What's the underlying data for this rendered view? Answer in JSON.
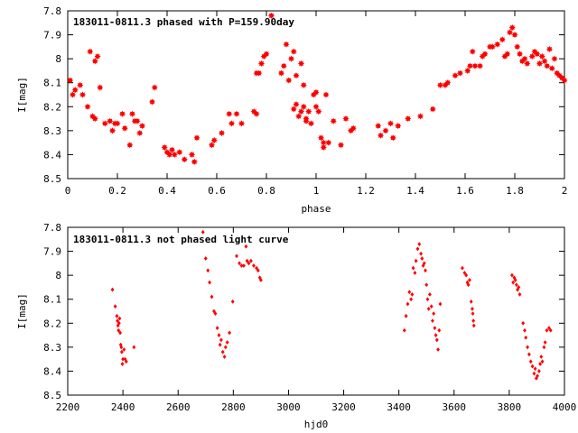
{
  "chart_data": [
    {
      "type": "scatter",
      "title": "183011-0811.3 phased with P=159.90day",
      "xlabel": "phase",
      "ylabel": "I[mag]",
      "xlim": [
        0,
        2
      ],
      "ylim": [
        8.5,
        7.8
      ],
      "y_inverted": true,
      "xticks": [
        "0",
        "0.2",
        "0.4",
        "0.6",
        "0.8",
        "1",
        "1.2",
        "1.4",
        "1.6",
        "1.8",
        "2"
      ],
      "yticks": [
        "7.8",
        "7.9",
        "8",
        "8.1",
        "8.2",
        "8.3",
        "8.4",
        "8.5"
      ],
      "marker": "filled-star",
      "color": "#ff0000",
      "points": [
        [
          0.01,
          8.09
        ],
        [
          0.02,
          8.15
        ],
        [
          0.03,
          8.13
        ],
        [
          0.05,
          8.11
        ],
        [
          0.06,
          8.15
        ],
        [
          0.08,
          8.2
        ],
        [
          0.09,
          7.97
        ],
        [
          0.1,
          8.24
        ],
        [
          0.11,
          8.25
        ],
        [
          0.11,
          8.01
        ],
        [
          0.12,
          7.99
        ],
        [
          0.13,
          8.12
        ],
        [
          0.15,
          8.27
        ],
        [
          0.17,
          8.26
        ],
        [
          0.18,
          8.3
        ],
        [
          0.19,
          8.27
        ],
        [
          0.2,
          8.27
        ],
        [
          0.22,
          8.23
        ],
        [
          0.23,
          8.29
        ],
        [
          0.25,
          8.36
        ],
        [
          0.26,
          8.23
        ],
        [
          0.27,
          8.26
        ],
        [
          0.28,
          8.26
        ],
        [
          0.29,
          8.31
        ],
        [
          0.3,
          8.28
        ],
        [
          0.34,
          8.18
        ],
        [
          0.35,
          8.12
        ],
        [
          0.39,
          8.37
        ],
        [
          0.4,
          8.39
        ],
        [
          0.41,
          8.4
        ],
        [
          0.42,
          8.38
        ],
        [
          0.43,
          8.4
        ],
        [
          0.45,
          8.39
        ],
        [
          0.47,
          8.42
        ],
        [
          0.5,
          8.4
        ],
        [
          0.51,
          8.43
        ],
        [
          0.52,
          8.33
        ],
        [
          0.58,
          8.36
        ],
        [
          0.59,
          8.34
        ],
        [
          0.62,
          8.31
        ],
        [
          0.65,
          8.23
        ],
        [
          0.66,
          8.27
        ],
        [
          0.68,
          8.23
        ],
        [
          0.7,
          8.27
        ],
        [
          0.75,
          8.22
        ],
        [
          0.76,
          8.23
        ],
        [
          0.76,
          8.06
        ],
        [
          0.77,
          8.06
        ],
        [
          0.78,
          8.02
        ],
        [
          0.79,
          7.99
        ],
        [
          0.8,
          7.98
        ],
        [
          0.82,
          7.82
        ],
        [
          0.86,
          8.06
        ],
        [
          0.87,
          8.03
        ],
        [
          0.88,
          7.94
        ],
        [
          0.89,
          8.09
        ],
        [
          0.9,
          8.0
        ],
        [
          0.91,
          7.97
        ],
        [
          0.91,
          8.21
        ],
        [
          0.92,
          8.19
        ],
        [
          0.92,
          8.07
        ],
        [
          0.93,
          8.24
        ],
        [
          0.94,
          8.22
        ],
        [
          0.94,
          8.02
        ],
        [
          0.95,
          8.11
        ],
        [
          0.95,
          8.2
        ],
        [
          0.96,
          8.25
        ],
        [
          0.96,
          8.26
        ],
        [
          0.97,
          8.22
        ],
        [
          0.98,
          8.27
        ],
        [
          0.99,
          8.15
        ],
        [
          1.0,
          8.14
        ],
        [
          1.0,
          8.2
        ],
        [
          1.01,
          8.22
        ],
        [
          1.02,
          8.33
        ],
        [
          1.03,
          8.35
        ],
        [
          1.03,
          8.37
        ],
        [
          1.04,
          8.15
        ],
        [
          1.05,
          8.35
        ],
        [
          1.07,
          8.26
        ],
        [
          1.1,
          8.36
        ],
        [
          1.12,
          8.25
        ],
        [
          1.14,
          8.3
        ],
        [
          1.15,
          8.29
        ],
        [
          1.25,
          8.28
        ],
        [
          1.26,
          8.32
        ],
        [
          1.28,
          8.3
        ],
        [
          1.3,
          8.27
        ],
        [
          1.31,
          8.33
        ],
        [
          1.33,
          8.28
        ],
        [
          1.37,
          8.25
        ],
        [
          1.42,
          8.24
        ],
        [
          1.47,
          8.21
        ],
        [
          1.5,
          8.11
        ],
        [
          1.52,
          8.11
        ],
        [
          1.53,
          8.1
        ],
        [
          1.56,
          8.07
        ],
        [
          1.58,
          8.06
        ],
        [
          1.61,
          8.05
        ],
        [
          1.62,
          8.03
        ],
        [
          1.63,
          7.97
        ],
        [
          1.64,
          8.03
        ],
        [
          1.66,
          8.03
        ],
        [
          1.67,
          7.99
        ],
        [
          1.68,
          7.98
        ],
        [
          1.7,
          7.95
        ],
        [
          1.71,
          7.95
        ],
        [
          1.73,
          7.94
        ],
        [
          1.75,
          7.92
        ],
        [
          1.76,
          7.99
        ],
        [
          1.77,
          7.98
        ],
        [
          1.78,
          7.89
        ],
        [
          1.79,
          7.87
        ],
        [
          1.8,
          7.9
        ],
        [
          1.81,
          7.95
        ],
        [
          1.82,
          7.98
        ],
        [
          1.83,
          8.01
        ],
        [
          1.84,
          8.0
        ],
        [
          1.85,
          8.02
        ],
        [
          1.87,
          7.99
        ],
        [
          1.88,
          7.97
        ],
        [
          1.89,
          7.98
        ],
        [
          1.9,
          8.02
        ],
        [
          1.91,
          7.99
        ],
        [
          1.92,
          8.01
        ],
        [
          1.93,
          8.03
        ],
        [
          1.94,
          7.96
        ],
        [
          1.95,
          8.04
        ],
        [
          1.96,
          8.0
        ],
        [
          1.97,
          8.06
        ],
        [
          1.98,
          8.07
        ],
        [
          1.99,
          8.08
        ],
        [
          2.0,
          8.09
        ]
      ]
    },
    {
      "type": "scatter",
      "title": "183011-0811.3 not phased light curve",
      "xlabel": "hjd0",
      "ylabel": "I[mag]",
      "xlim": [
        2200,
        4000
      ],
      "ylim": [
        8.5,
        7.8
      ],
      "y_inverted": true,
      "xticks": [
        "2200",
        "2400",
        "2600",
        "2800",
        "3000",
        "3200",
        "3400",
        "3600",
        "3800",
        "4000"
      ],
      "yticks": [
        "7.8",
        "7.9",
        "8",
        "8.1",
        "8.2",
        "8.3",
        "8.4",
        "8.5"
      ],
      "marker": "small-diamond",
      "color": "#ff0000",
      "points": [
        [
          2362,
          8.06
        ],
        [
          2372,
          8.13
        ],
        [
          2378,
          8.17
        ],
        [
          2380,
          8.19
        ],
        [
          2382,
          8.21
        ],
        [
          2384,
          8.23
        ],
        [
          2386,
          8.2
        ],
        [
          2388,
          8.18
        ],
        [
          2390,
          8.24
        ],
        [
          2392,
          8.29
        ],
        [
          2394,
          8.3
        ],
        [
          2396,
          8.32
        ],
        [
          2398,
          8.37
        ],
        [
          2400,
          8.35
        ],
        [
          2404,
          8.31
        ],
        [
          2408,
          8.35
        ],
        [
          2412,
          8.36
        ],
        [
          2440,
          8.3
        ],
        [
          2690,
          7.82
        ],
        [
          2700,
          7.93
        ],
        [
          2708,
          7.98
        ],
        [
          2714,
          8.03
        ],
        [
          2722,
          8.09
        ],
        [
          2730,
          8.15
        ],
        [
          2735,
          8.16
        ],
        [
          2742,
          8.22
        ],
        [
          2748,
          8.25
        ],
        [
          2752,
          8.29
        ],
        [
          2756,
          8.27
        ],
        [
          2762,
          8.32
        ],
        [
          2768,
          8.34
        ],
        [
          2772,
          8.3
        ],
        [
          2778,
          8.28
        ],
        [
          2786,
          8.24
        ],
        [
          2798,
          8.11
        ],
        [
          2812,
          7.92
        ],
        [
          2822,
          7.95
        ],
        [
          2830,
          7.96
        ],
        [
          2838,
          7.96
        ],
        [
          2846,
          7.88
        ],
        [
          2850,
          7.94
        ],
        [
          2856,
          7.95
        ],
        [
          2864,
          7.94
        ],
        [
          2874,
          7.96
        ],
        [
          2884,
          7.97
        ],
        [
          2890,
          7.98
        ],
        [
          2896,
          8.01
        ],
        [
          2900,
          8.02
        ],
        [
          3420,
          8.23
        ],
        [
          3426,
          8.17
        ],
        [
          3432,
          8.12
        ],
        [
          3438,
          8.07
        ],
        [
          3444,
          8.1
        ],
        [
          3448,
          8.08
        ],
        [
          3452,
          7.97
        ],
        [
          3458,
          7.99
        ],
        [
          3462,
          7.94
        ],
        [
          3468,
          7.89
        ],
        [
          3474,
          7.87
        ],
        [
          3480,
          7.91
        ],
        [
          3484,
          7.93
        ],
        [
          3488,
          7.96
        ],
        [
          3492,
          7.95
        ],
        [
          3496,
          7.98
        ],
        [
          3500,
          8.04
        ],
        [
          3504,
          8.1
        ],
        [
          3508,
          8.14
        ],
        [
          3512,
          8.08
        ],
        [
          3518,
          8.13
        ],
        [
          3522,
          8.19
        ],
        [
          3526,
          8.16
        ],
        [
          3530,
          8.22
        ],
        [
          3534,
          8.25
        ],
        [
          3538,
          8.27
        ],
        [
          3542,
          8.31
        ],
        [
          3546,
          8.23
        ],
        [
          3550,
          8.12
        ],
        [
          3630,
          7.97
        ],
        [
          3638,
          7.99
        ],
        [
          3644,
          8.0
        ],
        [
          3648,
          8.03
        ],
        [
          3652,
          8.04
        ],
        [
          3656,
          8.02
        ],
        [
          3662,
          8.11
        ],
        [
          3666,
          8.14
        ],
        [
          3668,
          8.16
        ],
        [
          3670,
          8.19
        ],
        [
          3672,
          8.21
        ],
        [
          3810,
          8.0
        ],
        [
          3814,
          8.03
        ],
        [
          3818,
          8.01
        ],
        [
          3822,
          8.02
        ],
        [
          3826,
          8.04
        ],
        [
          3830,
          8.06
        ],
        [
          3834,
          8.05
        ],
        [
          3838,
          8.08
        ],
        [
          3850,
          8.2
        ],
        [
          3856,
          8.23
        ],
        [
          3860,
          8.26
        ],
        [
          3866,
          8.3
        ],
        [
          3872,
          8.33
        ],
        [
          3878,
          8.36
        ],
        [
          3884,
          8.38
        ],
        [
          3890,
          8.41
        ],
        [
          3894,
          8.39
        ],
        [
          3898,
          8.43
        ],
        [
          3902,
          8.42
        ],
        [
          3908,
          8.4
        ],
        [
          3912,
          8.37
        ],
        [
          3916,
          8.34
        ],
        [
          3920,
          8.36
        ],
        [
          3926,
          8.3
        ],
        [
          3930,
          8.28
        ],
        [
          3936,
          8.23
        ],
        [
          3944,
          8.22
        ],
        [
          3950,
          8.23
        ]
      ]
    }
  ]
}
